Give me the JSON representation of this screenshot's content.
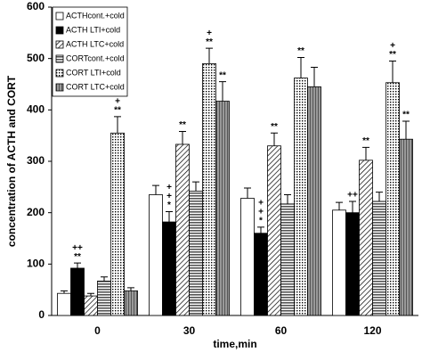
{
  "chart_data": {
    "type": "bar",
    "categories": [
      "0",
      "30",
      "60",
      "120"
    ],
    "x_label": "time,min",
    "y_label": "concentration of ACTH and CORT",
    "ylim": [
      0,
      600
    ],
    "yticks": [
      0,
      100,
      200,
      300,
      400,
      500,
      600
    ],
    "legend": "upper-left",
    "series": [
      {
        "name": "ACTHcont.+cold",
        "color": "#ffffff",
        "pattern": "none",
        "values": [
          43,
          235,
          228,
          205
        ],
        "errors": [
          5,
          18,
          20,
          15
        ],
        "annotations": [
          null,
          null,
          null,
          null
        ]
      },
      {
        "name": "ACTH LTI+cold",
        "color": "#000000",
        "pattern": "none",
        "values": [
          92,
          182,
          160,
          200
        ],
        "errors": [
          10,
          20,
          12,
          22
        ],
        "annotations": [
          [
            "++",
            "**"
          ],
          [
            "+",
            "+",
            "*"
          ],
          [
            "+",
            "+",
            "*"
          ],
          [
            "++"
          ]
        ]
      },
      {
        "name": "ACTH LTC+cold",
        "color": "#ffffff",
        "pattern": "diagonal",
        "values": [
          38,
          333,
          330,
          302
        ],
        "errors": [
          5,
          25,
          25,
          25
        ],
        "annotations": [
          null,
          [
            "**"
          ],
          [
            "**"
          ],
          [
            "**"
          ]
        ]
      },
      {
        "name": "CORTcont.+cold",
        "color": "#808080",
        "pattern": "horizontal",
        "values": [
          67,
          242,
          217,
          222
        ],
        "errors": [
          8,
          18,
          18,
          18
        ],
        "annotations": [
          null,
          null,
          null,
          null
        ]
      },
      {
        "name": "CORT LTI+cold",
        "color": "#ffffff",
        "pattern": "dots",
        "values": [
          355,
          490,
          462,
          453
        ],
        "errors": [
          32,
          30,
          40,
          42
        ],
        "annotations": [
          [
            "+",
            "**"
          ],
          [
            "+",
            "**"
          ],
          [
            "**"
          ],
          [
            "+",
            "**"
          ]
        ]
      },
      {
        "name": "CORT LTC+cold",
        "color": "#8a8a8a",
        "pattern": "vertical",
        "values": [
          48,
          417,
          445,
          343
        ],
        "errors": [
          6,
          38,
          38,
          35
        ],
        "annotations": [
          null,
          [
            "**"
          ],
          null,
          [
            "**"
          ]
        ]
      }
    ]
  }
}
